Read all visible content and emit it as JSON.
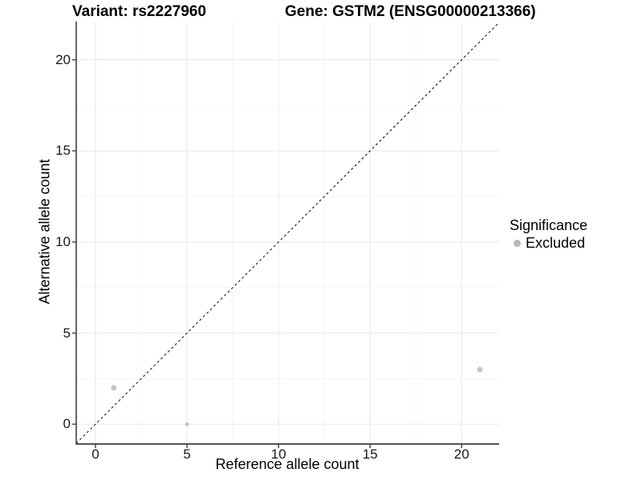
{
  "chart_data": {
    "type": "scatter",
    "title_left": "Variant: rs2227960",
    "title_right": "Gene: GSTM2 (ENSG00000213366)",
    "xlabel": "Reference allele count",
    "ylabel": "Alternative allele count",
    "xlim": [
      -1.05,
      22.05
    ],
    "ylim": [
      -1.05,
      22.05
    ],
    "x_ticks": [
      0,
      5,
      10,
      15,
      20
    ],
    "y_ticks": [
      0,
      5,
      10,
      15,
      20
    ],
    "x_minor_ticks": [
      2.5,
      7.5,
      12.5,
      17.5
    ],
    "y_minor_ticks": [
      2.5,
      7.5,
      12.5,
      17.5
    ],
    "grid": true,
    "identity_line": {
      "style": "dashed",
      "from": [
        -1.05,
        -1.05
      ],
      "to": [
        22.05,
        22.05
      ]
    },
    "series": [
      {
        "name": "Excluded",
        "points": [
          {
            "x": 1,
            "y": 2,
            "r": 3.4
          },
          {
            "x": 5,
            "y": 0,
            "r": 2.4
          },
          {
            "x": 21,
            "y": 3,
            "r": 3.4
          }
        ]
      }
    ],
    "legend": {
      "title": "Significance",
      "position": "right",
      "items": [
        {
          "label": "Excluded",
          "color": "#b9b9b9"
        }
      ]
    },
    "colors": {
      "point": "#c4c4c4",
      "grid_major": "#e8e8e8",
      "grid_minor": "#f4f4f4",
      "axis_line": "#404040",
      "tick_mark": "#404040",
      "dashed_line": "#1a1a1a",
      "background": "#ffffff"
    }
  }
}
